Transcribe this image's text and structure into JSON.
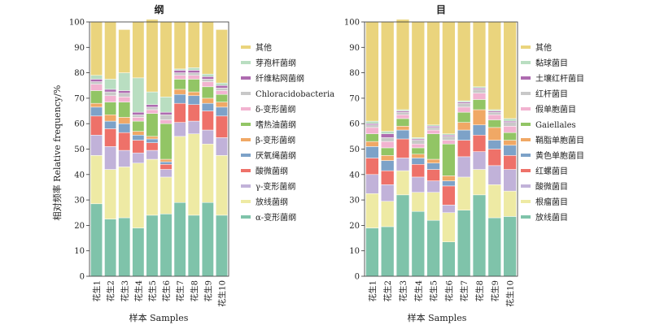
{
  "figure": {
    "ylabel": "相对频率 Relative frequency/%",
    "xlabel": "样本 Samples"
  },
  "chart_data": [
    {
      "type": "bar",
      "stacked": true,
      "title": "纲",
      "categories": [
        "花生1",
        "花生2",
        "花生3",
        "花生4",
        "花生5",
        "花生6",
        "花生7",
        "花生8",
        "花生9",
        "花生10"
      ],
      "ylim": [
        0,
        100
      ],
      "yticks": [
        0,
        10,
        20,
        30,
        40,
        50,
        60,
        70,
        80,
        90,
        100
      ],
      "legend_position": "right",
      "series": [
        {
          "name": "α-变形菌纲",
          "color": "#7FC3AA",
          "values": [
            28.5,
            22.5,
            23.0,
            19.0,
            24.0,
            24.5,
            29.0,
            24.0,
            29.0,
            24.0
          ]
        },
        {
          "name": "放线菌纲",
          "color": "#EEEAA4",
          "values": [
            19.0,
            19.5,
            20.0,
            25.5,
            22.0,
            14.5,
            26.0,
            32.0,
            23.0,
            23.5
          ]
        },
        {
          "name": "γ-变形菌纲",
          "color": "#C1B2D9",
          "values": [
            8.0,
            9.0,
            6.5,
            4.0,
            3.5,
            3.0,
            5.5,
            5.0,
            5.5,
            7.0
          ]
        },
        {
          "name": "酸微菌纲",
          "color": "#EE7169",
          "values": [
            7.5,
            7.0,
            7.0,
            5.0,
            3.0,
            2.0,
            7.5,
            6.5,
            7.5,
            8.5
          ]
        },
        {
          "name": "厌氧绳菌纲",
          "color": "#7DA2C8",
          "values": [
            3.5,
            3.0,
            3.5,
            2.0,
            1.5,
            1.0,
            3.5,
            3.5,
            3.0,
            3.5
          ]
        },
        {
          "name": "β-变形菌纲",
          "color": "#F0A865",
          "values": [
            1.5,
            2.5,
            2.5,
            1.5,
            1.0,
            1.0,
            2.0,
            1.5,
            2.0,
            2.0
          ]
        },
        {
          "name": "嗜热油菌纲",
          "color": "#92C565",
          "values": [
            5.0,
            5.0,
            6.0,
            4.0,
            9.0,
            14.0,
            4.0,
            5.0,
            4.5,
            3.0
          ]
        },
        {
          "name": "δ-变形菌纲",
          "color": "#F2B3D0",
          "values": [
            2.5,
            2.5,
            2.0,
            1.5,
            1.5,
            1.5,
            1.5,
            1.5,
            2.0,
            1.5
          ]
        },
        {
          "name": "Chloracidobacteria",
          "color": "#C8C8C8",
          "values": [
            1.0,
            1.5,
            1.5,
            1.0,
            1.0,
            2.0,
            1.0,
            1.0,
            1.0,
            1.0
          ]
        },
        {
          "name": "纤维粘网菌纲",
          "color": "#AE6BB0",
          "values": [
            1.0,
            1.0,
            1.0,
            1.0,
            1.0,
            1.0,
            1.0,
            1.0,
            1.0,
            1.0
          ]
        },
        {
          "name": "芽孢杆菌纲",
          "color": "#B9DEC1",
          "values": [
            1.5,
            4.0,
            7.0,
            13.5,
            5.0,
            6.0,
            0.5,
            1.0,
            1.0,
            1.0
          ]
        },
        {
          "name": "其他",
          "color": "#EAD47D",
          "values": [
            21.0,
            22.5,
            17.0,
            22.0,
            28.5,
            29.5,
            18.5,
            18.0,
            20.5,
            21.0
          ]
        }
      ]
    },
    {
      "type": "bar",
      "stacked": true,
      "title": "目",
      "categories": [
        "花生1",
        "花生2",
        "花生3",
        "花生4",
        "花生5",
        "花生6",
        "花生7",
        "花生8",
        "花生9",
        "花生10"
      ],
      "ylim": [
        0,
        100
      ],
      "yticks": [
        0,
        10,
        20,
        30,
        40,
        50,
        60,
        70,
        80,
        90,
        100
      ],
      "legend_position": "right",
      "series": [
        {
          "name": "放线菌目",
          "color": "#7FC3AA",
          "values": [
            19.0,
            19.5,
            32.0,
            25.5,
            22.0,
            13.5,
            26.0,
            32.0,
            23.0,
            23.5
          ]
        },
        {
          "name": "根瘤菌目",
          "color": "#EEEAA4",
          "values": [
            13.5,
            10.0,
            9.5,
            7.5,
            11.0,
            11.5,
            13.0,
            10.0,
            13.0,
            10.0
          ]
        },
        {
          "name": "酸微菌目",
          "color": "#C1B2D9",
          "values": [
            7.5,
            6.5,
            5.0,
            6.0,
            4.5,
            3.0,
            8.0,
            7.0,
            7.5,
            8.5
          ]
        },
        {
          "name": "红螺菌目",
          "color": "#EE7169",
          "values": [
            6.5,
            5.5,
            7.5,
            5.0,
            4.5,
            7.5,
            6.5,
            6.5,
            6.5,
            5.5
          ]
        },
        {
          "name": "黄色单胞菌目",
          "color": "#7DA2C8",
          "values": [
            4.5,
            4.0,
            3.5,
            2.5,
            2.5,
            2.0,
            4.0,
            4.0,
            3.5,
            4.0
          ]
        },
        {
          "name": "鞘脂单胞菌目",
          "color": "#F0A865",
          "values": [
            2.0,
            2.0,
            1.5,
            1.5,
            1.5,
            2.0,
            3.0,
            6.0,
            5.0,
            2.0
          ]
        },
        {
          "name": "Gaiellales",
          "color": "#92C565",
          "values": [
            3.0,
            3.0,
            3.0,
            2.5,
            10.0,
            12.5,
            4.0,
            4.0,
            3.0,
            3.0
          ]
        },
        {
          "name": "假单胞菌目",
          "color": "#F2B3D0",
          "values": [
            2.5,
            2.5,
            1.5,
            1.5,
            1.5,
            1.5,
            2.0,
            2.5,
            2.0,
            2.5
          ]
        },
        {
          "name": "红杆菌目",
          "color": "#C8C8C8",
          "values": [
            1.0,
            1.5,
            1.0,
            1.5,
            1.0,
            1.5,
            1.5,
            1.5,
            1.0,
            1.5
          ]
        },
        {
          "name": "土壤红杆菌目",
          "color": "#AE6BB0",
          "values": [
            0.5,
            1.5,
            0.5,
            0.5,
            0.5,
            0.5,
            0.5,
            0.5,
            0.5,
            0.5
          ]
        },
        {
          "name": "黏球菌目",
          "color": "#B9DEC1",
          "values": [
            1.0,
            1.0,
            0.5,
            0.5,
            0.5,
            0.5,
            0.5,
            0.5,
            0.5,
            1.0
          ]
        },
        {
          "name": "其他",
          "color": "#EAD47D",
          "values": [
            39.0,
            43.0,
            35.5,
            45.5,
            40.5,
            44.0,
            31.0,
            25.5,
            34.5,
            38.0
          ]
        }
      ]
    }
  ]
}
